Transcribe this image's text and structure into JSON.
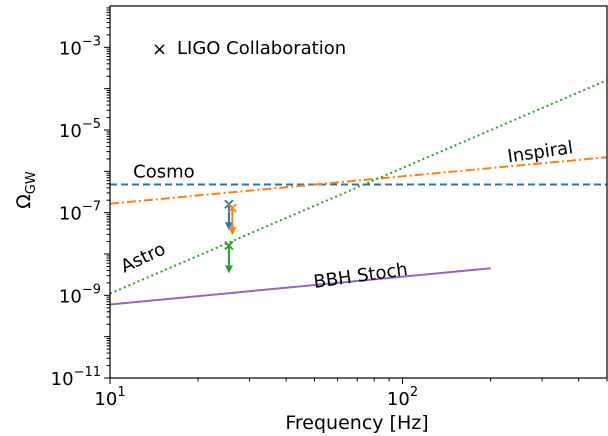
{
  "chart_data": {
    "type": "line",
    "title": "",
    "xlabel": "Frequency [Hz]",
    "ylabel_base": "Ω",
    "ylabel_sub": "GW",
    "x_scale": "log",
    "y_scale": "log",
    "xlim": [
      10,
      500
    ],
    "ylim": [
      1e-11,
      0.01
    ],
    "grid": false,
    "x_ticks": [
      {
        "value": 10,
        "base": "10",
        "exp": "1"
      },
      {
        "value": 100,
        "base": "10",
        "exp": "2"
      }
    ],
    "y_ticks": [
      {
        "value": 1e-11,
        "base": "10",
        "exp": "−11"
      },
      {
        "value": 1e-09,
        "base": "10",
        "exp": "−9"
      },
      {
        "value": 1e-07,
        "base": "10",
        "exp": "−7"
      },
      {
        "value": 1e-05,
        "base": "10",
        "exp": "−5"
      },
      {
        "value": 0.001,
        "base": "10",
        "exp": "−3"
      }
    ],
    "series": [
      {
        "name": "Cosmo",
        "color": "#1f77b4",
        "style": "dashed",
        "x": [
          10,
          500
        ],
        "y": [
          4.8e-07,
          4.8e-07
        ]
      },
      {
        "name": "Inspiral",
        "color": "#ff7f0e",
        "style": "dashdot",
        "x": [
          10,
          500
        ],
        "y": [
          1.65e-07,
          2.2e-06
        ]
      },
      {
        "name": "Astro",
        "color": "#2ca02c",
        "style": "dotted",
        "x": [
          10,
          500
        ],
        "y": [
          1.1e-09,
          0.00016
        ]
      },
      {
        "name": "BBH Stoch",
        "color": "#9467bd",
        "style": "solid",
        "x": [
          10,
          200
        ],
        "y": [
          6e-10,
          4.5e-09
        ]
      }
    ],
    "annotations": [
      {
        "text": "Cosmo",
        "x": 12,
        "y": 7e-07,
        "rotate": 0
      },
      {
        "text": "Inspiral",
        "x": 230,
        "y": 1.65e-06,
        "rotate": -8
      },
      {
        "text": "Astro",
        "x": 11.2,
        "y": 3.5e-09,
        "rotate": -25
      },
      {
        "text": "BBH Stoch",
        "x": 50,
        "y": 1.5e-09,
        "rotate": -8
      }
    ],
    "upper_limits": [
      {
        "color": "#1f77b4",
        "x": 25.5,
        "y_top": 1.6e-07,
        "y_bottom": 4.2e-08
      },
      {
        "color": "#ff7f0e",
        "x": 26.2,
        "y_top": 1.3e-07,
        "y_bottom": 3.2e-08
      },
      {
        "color": "#2ca02c",
        "x": 25.5,
        "y_top": 1.6e-08,
        "y_bottom": 3.8e-09
      }
    ],
    "legend": {
      "placement": "top-left",
      "marker": "×",
      "label": "LIGO Collaboration"
    }
  }
}
